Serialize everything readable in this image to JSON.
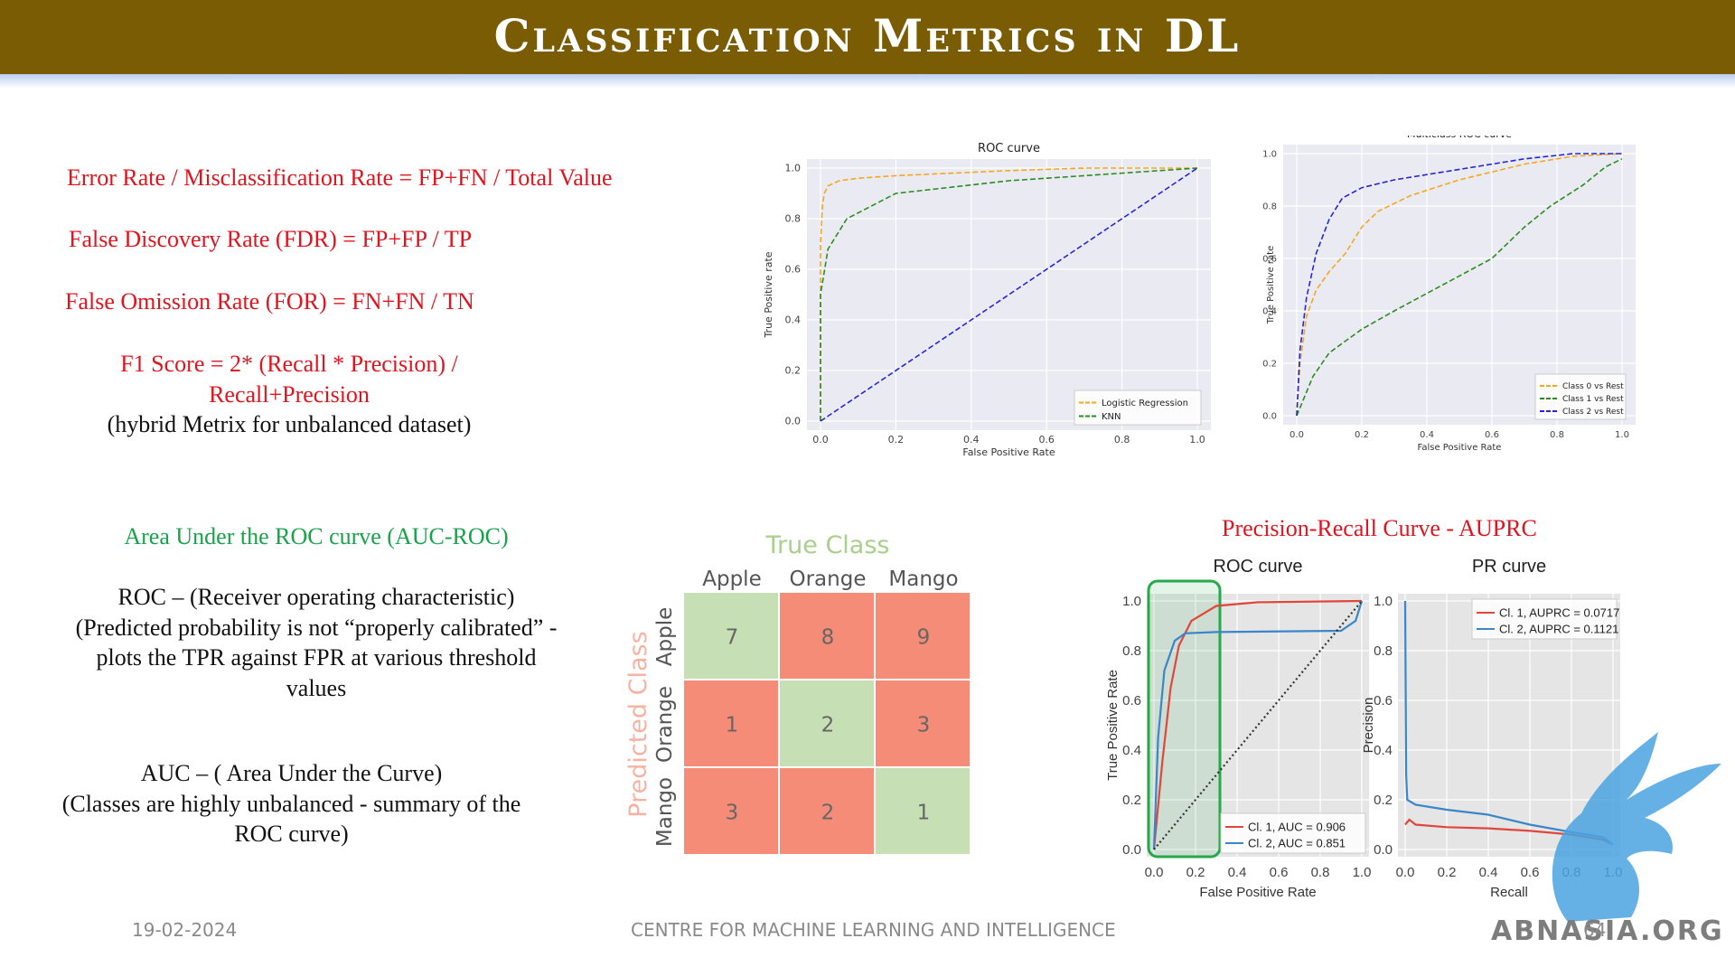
{
  "header": {
    "title": "Classification Metrics in DL"
  },
  "formulas": {
    "error_rate": "Error Rate / Misclassification Rate = FP+FN / Total Value",
    "fdr": "False Discovery Rate (FDR) = FP+FP / TP",
    "for": "False Omission Rate (FOR) = FN+FN / TN",
    "f1_line1": "F1 Score = 2* (Recall * Precision) /",
    "f1_line2": "Recall+Precision",
    "f1_note": "(hybrid Metrix for unbalanced dataset)"
  },
  "auc_section": {
    "heading": "Area Under the ROC curve (AUC-ROC)",
    "roc_line1": "ROC – (Receiver operating characteristic)",
    "roc_line2": "(Predicted  probability is not “properly  calibrated” -",
    "roc_line3": "plots the TPR against FPR at various threshold",
    "roc_line4": "values",
    "auc_line1": "AUC – ( Area Under the Curve)",
    "auc_line2": "(Classes are highly unbalanced - summary of the",
    "auc_line3": "ROC curve)"
  },
  "pr_heading": "Precision-Recall Curve - AUPRC",
  "footer": {
    "date": "19-02-2024",
    "center": "CENTRE FOR MACHINE LEARNING AND INTELLIGENCE",
    "page": "64",
    "watermark": "ABNASIA.ORG"
  },
  "confusion_matrix": {
    "title": "True Class",
    "ylabel": "Predicted Class",
    "columns": [
      "Apple",
      "Orange",
      "Mango"
    ],
    "rows": [
      "Apple",
      "Orange",
      "Mango"
    ],
    "values": [
      [
        7,
        8,
        9
      ],
      [
        1,
        2,
        3
      ],
      [
        3,
        2,
        1
      ]
    ],
    "colors": {
      "correct": "#c7dfb4",
      "wrong": "#f58c78",
      "title": "#a9cf8c",
      "ylabel": "#f6b3a3"
    }
  },
  "chart_data": [
    {
      "type": "line",
      "title": "ROC curve",
      "xlabel": "False Positive Rate",
      "ylabel": "True Positive rate",
      "xlim": [
        0,
        1
      ],
      "ylim": [
        0,
        1
      ],
      "ticks": [
        "0.0",
        "0.2",
        "0.4",
        "0.6",
        "0.8",
        "1.0"
      ],
      "grid": true,
      "legend": "bottom-right",
      "series": [
        {
          "name": "Logistic Regression",
          "color": "#f5a623",
          "dash": true,
          "points": [
            [
              0,
              0
            ],
            [
              0,
              0.7
            ],
            [
              0.005,
              0.85
            ],
            [
              0.01,
              0.9
            ],
            [
              0.02,
              0.93
            ],
            [
              0.05,
              0.95
            ],
            [
              0.1,
              0.96
            ],
            [
              0.2,
              0.97
            ],
            [
              0.5,
              0.99
            ],
            [
              0.7,
              1.0
            ],
            [
              1,
              1
            ]
          ]
        },
        {
          "name": "KNN",
          "color": "#2e8b22",
          "dash": true,
          "points": [
            [
              0,
              0
            ],
            [
              0,
              0.5
            ],
            [
              0.02,
              0.68
            ],
            [
              0.07,
              0.8
            ],
            [
              0.2,
              0.9
            ],
            [
              0.5,
              0.95
            ],
            [
              0.8,
              0.98
            ],
            [
              1,
              1
            ]
          ]
        },
        {
          "name": "",
          "color": "#2626d6",
          "dash": true,
          "points": [
            [
              0,
              0
            ],
            [
              1,
              1
            ]
          ]
        }
      ]
    },
    {
      "type": "line",
      "title": "Multiclass ROC curve",
      "xlabel": "False Positive Rate",
      "ylabel": "True Positive rate",
      "xlim": [
        0,
        1
      ],
      "ylim": [
        0,
        1
      ],
      "ticks": [
        "0.0",
        "0.2",
        "0.4",
        "0.6",
        "0.8",
        "1.0"
      ],
      "grid": true,
      "legend": "bottom-right",
      "series": [
        {
          "name": "Class 0 vs Rest",
          "color": "#f5a623",
          "dash": true,
          "points": [
            [
              0,
              0
            ],
            [
              0.01,
              0.2
            ],
            [
              0.03,
              0.38
            ],
            [
              0.06,
              0.48
            ],
            [
              0.1,
              0.55
            ],
            [
              0.15,
              0.62
            ],
            [
              0.2,
              0.72
            ],
            [
              0.25,
              0.78
            ],
            [
              0.35,
              0.84
            ],
            [
              0.5,
              0.9
            ],
            [
              0.7,
              0.96
            ],
            [
              0.85,
              0.99
            ],
            [
              1,
              1
            ]
          ]
        },
        {
          "name": "Class 1 vs Rest",
          "color": "#2e8b22",
          "dash": true,
          "points": [
            [
              0,
              0
            ],
            [
              0.05,
              0.15
            ],
            [
              0.1,
              0.24
            ],
            [
              0.2,
              0.33
            ],
            [
              0.3,
              0.4
            ],
            [
              0.45,
              0.5
            ],
            [
              0.6,
              0.6
            ],
            [
              0.7,
              0.72
            ],
            [
              0.78,
              0.8
            ],
            [
              0.88,
              0.88
            ],
            [
              0.95,
              0.95
            ],
            [
              1,
              0.98
            ]
          ]
        },
        {
          "name": "Class 2 vs Rest",
          "color": "#2626d6",
          "dash": true,
          "points": [
            [
              0,
              0
            ],
            [
              0.01,
              0.25
            ],
            [
              0.03,
              0.45
            ],
            [
              0.06,
              0.62
            ],
            [
              0.1,
              0.75
            ],
            [
              0.14,
              0.83
            ],
            [
              0.2,
              0.87
            ],
            [
              0.3,
              0.9
            ],
            [
              0.5,
              0.94
            ],
            [
              0.7,
              0.98
            ],
            [
              0.85,
              1.0
            ],
            [
              1,
              1
            ]
          ]
        }
      ]
    },
    {
      "type": "line",
      "title": "ROC curve",
      "xlabel": "False Positive Rate",
      "ylabel": "True Positive Rate",
      "xlim": [
        0,
        1
      ],
      "ylim": [
        0,
        1
      ],
      "ticks": [
        "0.0",
        "0.2",
        "0.4",
        "0.6",
        "0.8",
        "1.0"
      ],
      "grid": true,
      "legend": "bottom-right",
      "series": [
        {
          "name": "Cl. 1, AUC = 0.906",
          "color": "#e0473c",
          "points": [
            [
              0,
              0
            ],
            [
              0.04,
              0.35
            ],
            [
              0.08,
              0.65
            ],
            [
              0.12,
              0.82
            ],
            [
              0.18,
              0.92
            ],
            [
              0.3,
              0.98
            ],
            [
              0.5,
              0.995
            ],
            [
              1,
              1
            ]
          ]
        },
        {
          "name": "Cl. 2, AUC = 0.851",
          "color": "#3a86c8",
          "points": [
            [
              0,
              0
            ],
            [
              0.02,
              0.45
            ],
            [
              0.05,
              0.72
            ],
            [
              0.1,
              0.84
            ],
            [
              0.15,
              0.87
            ],
            [
              0.3,
              0.875
            ],
            [
              0.9,
              0.88
            ],
            [
              0.97,
              0.92
            ],
            [
              1,
              1
            ]
          ]
        },
        {
          "name": "",
          "color": "#333333",
          "dotted": true,
          "points": [
            [
              0,
              0
            ],
            [
              1,
              1
            ]
          ]
        }
      ],
      "highlight_region": {
        "x": [
          0,
          0.3
        ],
        "color": "#27a84a"
      }
    },
    {
      "type": "line",
      "title": "PR curve",
      "xlabel": "Recall",
      "ylabel": "Precision",
      "xlim": [
        0,
        1
      ],
      "ylim": [
        0,
        1
      ],
      "ticks": [
        "0.0",
        "0.2",
        "0.4",
        "0.6",
        "0.8",
        "1.0"
      ],
      "grid": true,
      "legend": "top-right",
      "series": [
        {
          "name": "Cl. 1, AUPRC = 0.0717",
          "color": "#e0473c",
          "points": [
            [
              0,
              0.1
            ],
            [
              0.02,
              0.12
            ],
            [
              0.05,
              0.1
            ],
            [
              0.2,
              0.09
            ],
            [
              0.4,
              0.085
            ],
            [
              0.6,
              0.075
            ],
            [
              0.8,
              0.06
            ],
            [
              0.95,
              0.04
            ],
            [
              1,
              0.02
            ]
          ]
        },
        {
          "name": "Cl. 2, AUPRC = 0.1121",
          "color": "#3a86c8",
          "points": [
            [
              0,
              1.0
            ],
            [
              0.005,
              0.3
            ],
            [
              0.01,
              0.2
            ],
            [
              0.05,
              0.18
            ],
            [
              0.2,
              0.16
            ],
            [
              0.4,
              0.14
            ],
            [
              0.6,
              0.1
            ],
            [
              0.8,
              0.07
            ],
            [
              0.95,
              0.05
            ],
            [
              1,
              0.02
            ]
          ]
        }
      ]
    }
  ]
}
